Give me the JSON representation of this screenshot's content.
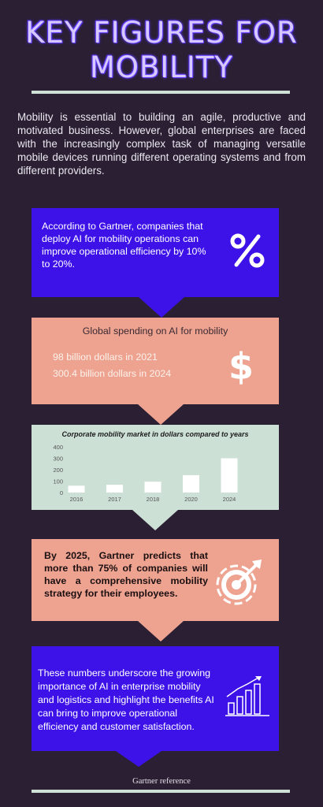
{
  "title": {
    "line1": "KEY FIGURES FOR",
    "line2": "MOBILITY"
  },
  "intro": "Mobility is essential to building an agile, productive and motivated business. However, global enterprises are faced with the increasingly complex task of managing versatile mobile devices running different operating systems and from different providers.",
  "card1": {
    "text": "According to Gartner, companies that deploy AI for mobility operations can improve operational efficiency by 10% to 20%.",
    "icon": "percent-icon"
  },
  "card2": {
    "heading": "Global spending on AI for mobility",
    "line1": "98 billion dollars in 2021",
    "line2": "300.4 billion dollars in 2024",
    "icon_glyph": "$"
  },
  "chart_data": {
    "type": "bar",
    "title": "Corporate mobility market in dollars compared to years",
    "categories": [
      "2016",
      "2017",
      "2018",
      "2020",
      "2024"
    ],
    "values": [
      60,
      68,
      95,
      152,
      300
    ],
    "y_ticks": [
      "0",
      "100",
      "200",
      "300",
      "400"
    ],
    "ylim": [
      0,
      400
    ],
    "bar_color": "#ffffff",
    "grid": false,
    "xlabel": "",
    "ylabel": ""
  },
  "card4": {
    "text": "By 2025, Gartner predicts that more than 75% of companies will have a comprehensive mobility strategy for their employees.",
    "icon": "target-icon"
  },
  "card5": {
    "text": "These numbers underscore the growing importance of AI in enterprise mobility and logistics and highlight the benefits AI can bring to improve operational efficiency and customer satisfaction.",
    "icon": "growth-chart-icon"
  },
  "reference": "Gartner reference"
}
